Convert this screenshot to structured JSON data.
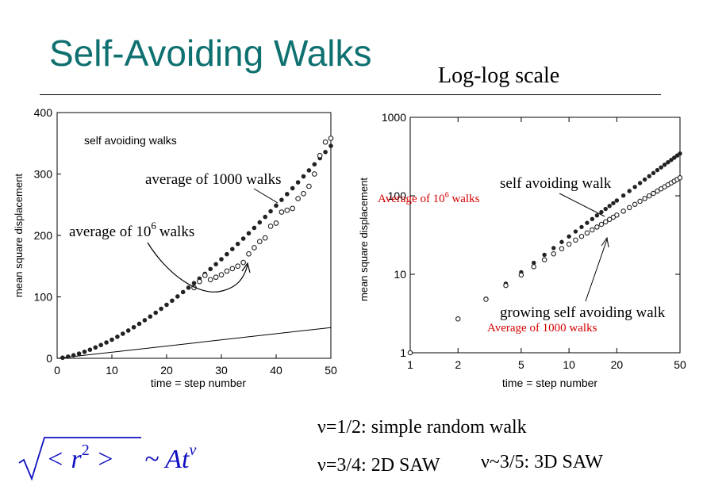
{
  "slide": {
    "title": "Self-Avoiding Walks",
    "subtitle": "Log-log scale"
  },
  "chart_data": [
    {
      "type": "scatter",
      "xlabel": "time = step number",
      "ylabel": "mean square displacement",
      "xlim": [
        0,
        50
      ],
      "ylim": [
        0,
        400
      ],
      "xticks": [
        "0",
        "10",
        "20",
        "30",
        "40",
        "50"
      ],
      "yticks": [
        "0",
        "100",
        "200",
        "300",
        "400"
      ],
      "grid": false,
      "annotations": [
        "self avoiding walks",
        "average of 1000 walks",
        "average of 10",
        "6",
        "walks"
      ],
      "line": {
        "x": [
          0,
          50
        ],
        "y": [
          0,
          50
        ]
      },
      "series": [
        {
          "marker": "filled",
          "x": [
            1,
            2,
            3,
            4,
            5,
            6,
            7,
            8,
            9,
            10,
            11,
            12,
            13,
            14,
            15,
            16,
            17,
            18,
            19,
            20,
            21,
            22,
            23,
            24,
            25,
            26,
            27,
            28,
            29,
            30,
            31,
            32,
            33,
            34,
            35,
            36,
            37,
            38,
            39,
            40,
            41,
            42,
            43,
            44,
            45,
            46,
            47,
            48,
            49,
            50
          ],
          "y": [
            1,
            2.7,
            4.9,
            7.6,
            10.6,
            14,
            17.7,
            21.6,
            25.8,
            30.3,
            35.1,
            40,
            45.2,
            50.6,
            56.2,
            62,
            68,
            74.2,
            80.6,
            87.1,
            93.8,
            100.7,
            107.8,
            115,
            122.3,
            129.8,
            137.5,
            145.3,
            153.2,
            161.3,
            169.5,
            177.8,
            186.2,
            194.8,
            203.5,
            212.3,
            221.2,
            230.2,
            239.3,
            248.6,
            257.9,
            267.3,
            276.8,
            286.4,
            296.1,
            305.9,
            315.8,
            325.7,
            335.7,
            345.8
          ]
        },
        {
          "marker": "open",
          "x": [
            25,
            26,
            27,
            28,
            29,
            30,
            31,
            32,
            33,
            34,
            35,
            36,
            37,
            38,
            39,
            40,
            41,
            42,
            43,
            44,
            45,
            46,
            47,
            48,
            49,
            50
          ],
          "y": [
            115,
            125,
            135,
            128,
            132,
            136,
            142,
            146,
            150,
            156,
            170,
            180,
            190,
            196,
            215,
            220,
            238,
            241,
            244,
            260,
            268,
            280,
            300,
            330,
            352,
            358
          ]
        }
      ]
    },
    {
      "type": "scatter",
      "xscale": "log",
      "yscale": "log",
      "xlabel": "time = step number",
      "ylabel": "mean square displacement",
      "xlim": [
        1,
        50
      ],
      "ylim": [
        1,
        1000
      ],
      "xticks": [
        "1",
        "2",
        "5",
        "10",
        "20",
        "50"
      ],
      "yticks": [
        "1",
        "10",
        "100",
        "1000"
      ],
      "grid": false,
      "annotations": [
        "self avoiding walk",
        "growing self avoiding walk"
      ],
      "red_labels": [
        "Average of 10",
        "6",
        " walks",
        "Average of 1000 walks"
      ],
      "series": [
        {
          "name": "self avoiding walk",
          "marker": "filled",
          "x": [
            1,
            2,
            3,
            4,
            5,
            6,
            7,
            8,
            9,
            10,
            11,
            12,
            13,
            14,
            15,
            16,
            17,
            18,
            19,
            20,
            22,
            24,
            26,
            28,
            30,
            32,
            34,
            36,
            38,
            40,
            42,
            44,
            46,
            48,
            50
          ],
          "y": [
            1,
            2.7,
            4.9,
            7.6,
            10.6,
            14,
            17.7,
            21.6,
            25.8,
            30.3,
            35.1,
            40,
            45.2,
            50.6,
            56.2,
            62,
            68,
            74.2,
            80.6,
            87.1,
            100.7,
            115,
            129.8,
            145.3,
            161.3,
            177.8,
            194.8,
            212.3,
            230.2,
            248.6,
            267.3,
            286.4,
            305.9,
            325.7,
            345.8
          ]
        },
        {
          "name": "growing self avoiding walk",
          "marker": "open",
          "x": [
            1,
            2,
            3,
            4,
            5,
            6,
            7,
            8,
            9,
            10,
            11,
            12,
            13,
            14,
            15,
            16,
            17,
            18,
            19,
            20,
            22,
            24,
            26,
            28,
            30,
            32,
            34,
            36,
            38,
            40,
            42,
            44,
            46,
            48,
            50
          ],
          "y": [
            1,
            2.7,
            4.8,
            7.2,
            9.8,
            12.5,
            15.3,
            18.2,
            21.2,
            24.2,
            27.3,
            30.4,
            33.6,
            36.8,
            40,
            43.3,
            46.6,
            50,
            53.4,
            56.8,
            63.7,
            70.7,
            77.9,
            85.1,
            92.4,
            99.8,
            107.3,
            114.9,
            122.6,
            130.3,
            138,
            145.9,
            153.7,
            161.7,
            169.7
          ]
        }
      ]
    }
  ],
  "notes": {
    "formula": "√<r²> ~ At^ν",
    "nu_half": "ν=1/2: simple random walk",
    "nu_three_quarter": "ν=3/4: 2D SAW",
    "nu_three_fifth": "ν~3/5: 3D SAW"
  }
}
